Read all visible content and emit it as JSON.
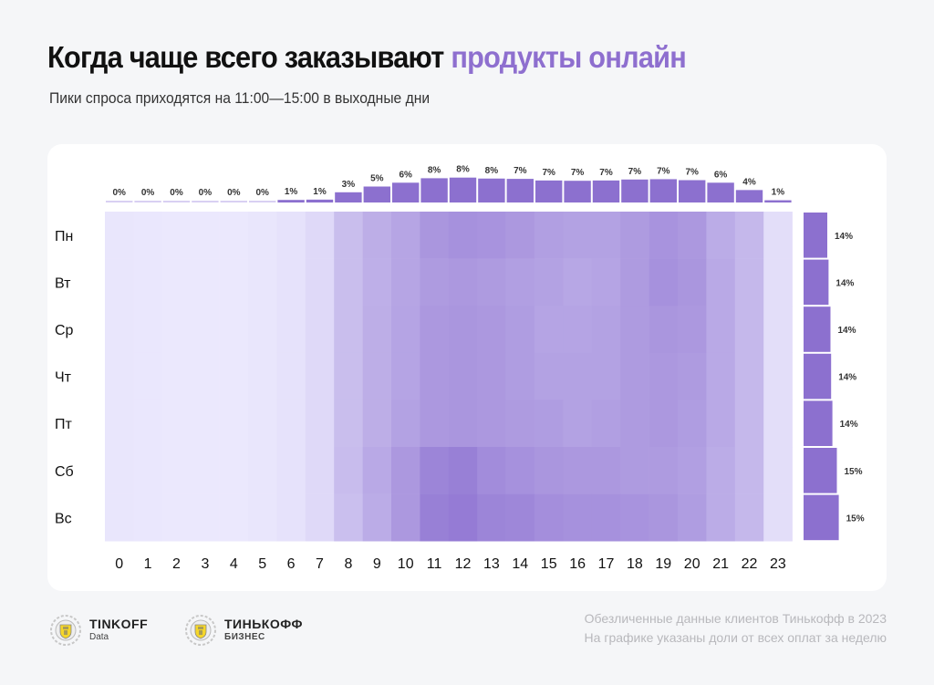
{
  "header": {
    "title_main": "Когда чаще всего заказывают ",
    "title_accent": "продукты онлайн",
    "subtitle": "Пики спроса приходятся на 11:00—15:00 в выходные дни"
  },
  "footer": {
    "note_line1": "Обезличенные данные клиентов Тинькофф в 2023",
    "note_line2": "На графике указаны доли от всех оплат за неделю",
    "logos": [
      {
        "name": "TINKOFF",
        "sub": "Data",
        "icon": "tinkoff-emblem-icon"
      },
      {
        "name": "ТИНЬКОФФ",
        "sub": "БИЗНЕС",
        "icon": "tinkoff-emblem-icon"
      }
    ]
  },
  "colors": {
    "accent": "#8e6fcf",
    "bar": "#8c70cf",
    "heat_low": "#ebe8fd",
    "heat_high": "#8b6fd0"
  },
  "chart_data": {
    "type": "heatmap",
    "title": "Когда чаще всего заказывают продукты онлайн",
    "x_categories": [
      "0",
      "1",
      "2",
      "3",
      "4",
      "5",
      "6",
      "7",
      "8",
      "9",
      "10",
      "11",
      "12",
      "13",
      "14",
      "15",
      "16",
      "17",
      "18",
      "19",
      "20",
      "21",
      "22",
      "23"
    ],
    "y_categories": [
      "Пн",
      "Вт",
      "Ср",
      "Чт",
      "Пт",
      "Сб",
      "Вс"
    ],
    "hour_totals": {
      "labels": [
        "0%",
        "0%",
        "0%",
        "0%",
        "0%",
        "0%",
        "1%",
        "1%",
        "3%",
        "5%",
        "6%",
        "8%",
        "8%",
        "8%",
        "7%",
        "7%",
        "7%",
        "7%",
        "7%",
        "7%",
        "7%",
        "6%",
        "4%",
        "1%"
      ],
      "values": [
        0.3,
        0.2,
        0.2,
        0.2,
        0.2,
        0.3,
        0.8,
        0.9,
        3.2,
        5.0,
        6.2,
        7.6,
        7.8,
        7.5,
        7.4,
        6.9,
        6.8,
        6.9,
        7.2,
        7.3,
        7.0,
        6.2,
        3.9,
        0.7
      ]
    },
    "day_totals": {
      "labels": [
        "14%",
        "14%",
        "14%",
        "14%",
        "14%",
        "15%",
        "15%"
      ],
      "values": [
        13.6,
        13.8,
        14.1,
        14.2,
        14.4,
        15.1,
        15.4
      ]
    },
    "intensity_note": "relative share, 0 = lightest, 1 = darkest",
    "values": [
      [
        0.02,
        0.01,
        0.0,
        0.0,
        0.0,
        0.02,
        0.05,
        0.12,
        0.35,
        0.48,
        0.55,
        0.68,
        0.72,
        0.7,
        0.66,
        0.6,
        0.58,
        0.58,
        0.64,
        0.7,
        0.66,
        0.5,
        0.4,
        0.08
      ],
      [
        0.02,
        0.01,
        0.0,
        0.0,
        0.0,
        0.02,
        0.05,
        0.12,
        0.35,
        0.47,
        0.55,
        0.64,
        0.66,
        0.64,
        0.6,
        0.58,
        0.54,
        0.56,
        0.64,
        0.72,
        0.68,
        0.52,
        0.4,
        0.08
      ],
      [
        0.02,
        0.01,
        0.0,
        0.0,
        0.0,
        0.02,
        0.05,
        0.12,
        0.35,
        0.48,
        0.56,
        0.66,
        0.68,
        0.66,
        0.62,
        0.56,
        0.56,
        0.58,
        0.64,
        0.68,
        0.66,
        0.52,
        0.4,
        0.08
      ],
      [
        0.02,
        0.01,
        0.0,
        0.0,
        0.0,
        0.02,
        0.05,
        0.12,
        0.35,
        0.48,
        0.56,
        0.66,
        0.68,
        0.66,
        0.62,
        0.58,
        0.58,
        0.58,
        0.64,
        0.66,
        0.64,
        0.52,
        0.4,
        0.08
      ],
      [
        0.02,
        0.01,
        0.0,
        0.0,
        0.0,
        0.02,
        0.05,
        0.12,
        0.35,
        0.48,
        0.58,
        0.66,
        0.68,
        0.66,
        0.64,
        0.62,
        0.58,
        0.6,
        0.64,
        0.66,
        0.62,
        0.52,
        0.4,
        0.08
      ],
      [
        0.02,
        0.01,
        0.0,
        0.0,
        0.0,
        0.02,
        0.05,
        0.12,
        0.36,
        0.52,
        0.66,
        0.82,
        0.86,
        0.76,
        0.72,
        0.68,
        0.66,
        0.66,
        0.64,
        0.64,
        0.6,
        0.5,
        0.4,
        0.08
      ],
      [
        0.02,
        0.01,
        0.0,
        0.0,
        0.0,
        0.02,
        0.05,
        0.12,
        0.34,
        0.5,
        0.66,
        0.86,
        0.9,
        0.82,
        0.8,
        0.74,
        0.72,
        0.72,
        0.7,
        0.68,
        0.62,
        0.5,
        0.4,
        0.08
      ]
    ]
  }
}
